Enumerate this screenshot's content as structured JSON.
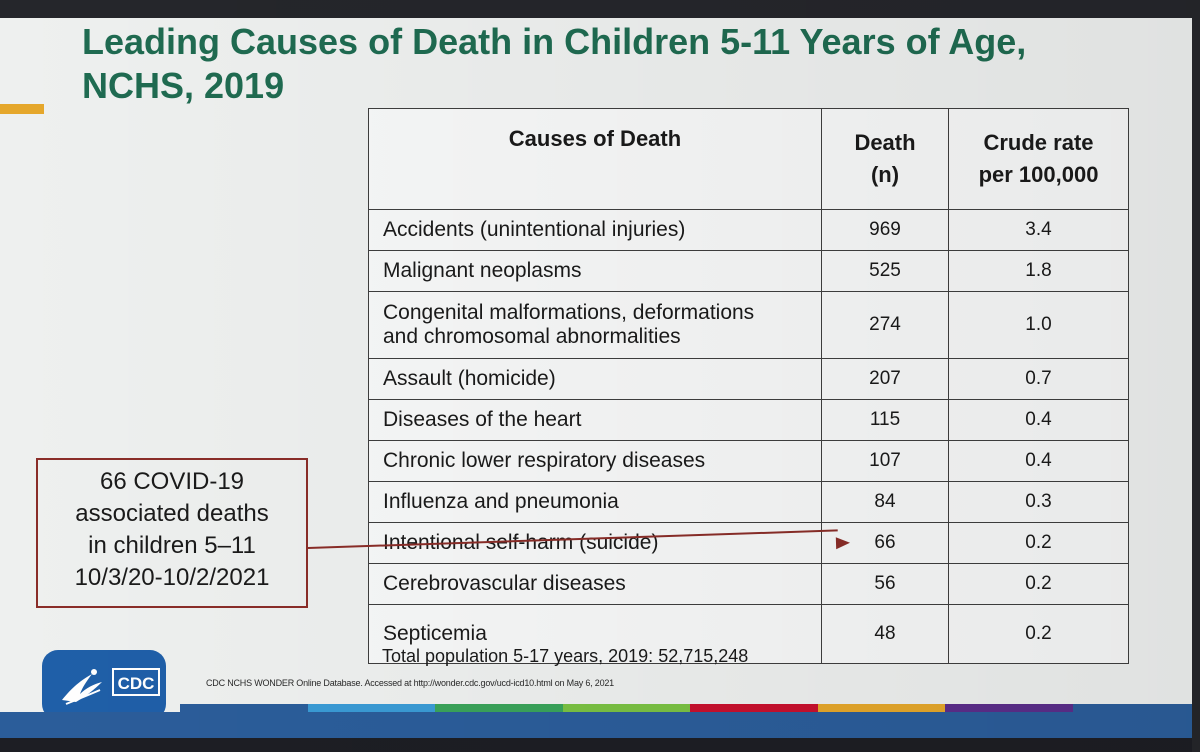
{
  "slide": {
    "title_line1": "Leading Causes of Death in Children 5-11 Years of Age,",
    "title_line2": "NCHS, 2019"
  },
  "table": {
    "headers": {
      "cause": "Causes of Death",
      "death_line1": "Death",
      "death_line2": "(n)",
      "rate_line1": "Crude rate",
      "rate_line2": "per 100,000"
    },
    "rows": [
      {
        "cause": "Accidents (unintentional injuries)",
        "deaths": "969",
        "rate": "3.4"
      },
      {
        "cause": "Malignant neoplasms",
        "deaths": "525",
        "rate": "1.8"
      },
      {
        "cause_line1": "Congenital malformations, deformations",
        "cause_line2": "and chromosomal abnormalities",
        "deaths": "274",
        "rate": "1.0"
      },
      {
        "cause": "Assault (homicide)",
        "deaths": "207",
        "rate": "0.7"
      },
      {
        "cause": "Diseases of the heart",
        "deaths": "115",
        "rate": "0.4"
      },
      {
        "cause": "Chronic lower respiratory diseases",
        "deaths": "107",
        "rate": "0.4"
      },
      {
        "cause": "Influenza and pneumonia",
        "deaths": "84",
        "rate": "0.3"
      },
      {
        "cause": "Intentional self-harm (suicide)",
        "deaths": "66",
        "rate": "0.2"
      },
      {
        "cause": "Cerebrovascular diseases",
        "deaths": "56",
        "rate": "0.2"
      },
      {
        "cause": "Septicemia",
        "deaths": "48",
        "rate": "0.2"
      }
    ],
    "total_population": "Total population 5-17 years, 2019: 52,715,248"
  },
  "callout": {
    "line1": "66 COVID-19",
    "line2": "associated deaths",
    "line3": "in children 5–11",
    "line4": "10/3/20-10/2/2021"
  },
  "source": "CDC NCHS WONDER Online Database. Accessed at http://wonder.cdc.gov/ucd-icd10.html on May 6, 2021",
  "logo": {
    "text": "CDC",
    "icon": "hhs-eagle-icon"
  },
  "colors": {
    "title_green": "#1f6b51",
    "accent_gold": "#e5a72b",
    "callout_red": "#8a2d28",
    "cdc_blue": "#1f5fa8",
    "stripes": [
      "#2b5d9a",
      "#3a9bd5",
      "#3aa35a",
      "#7ac143",
      "#c8102e",
      "#e5a72b",
      "#5b2d8a",
      "#2b5d9a"
    ]
  }
}
